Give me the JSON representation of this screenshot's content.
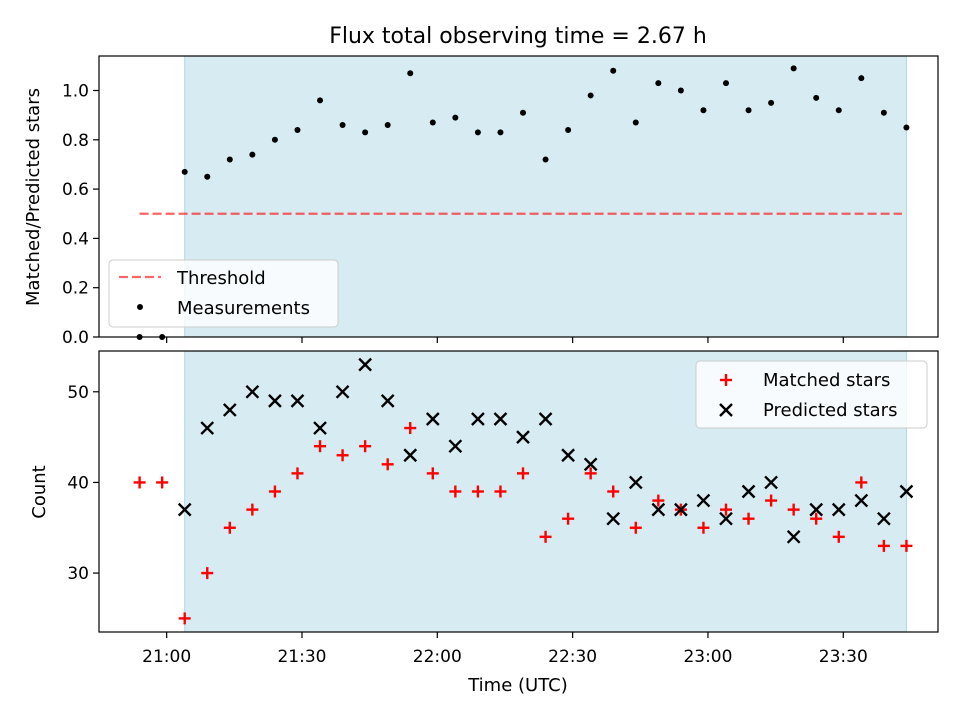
{
  "title": "Flux total observing time = 2.67 h",
  "colors": {
    "shade": "#add8e6",
    "threshold": "#ff0000",
    "measurements": "#000000",
    "matched": "#ff0000",
    "predicted": "#000000"
  },
  "chart_data": [
    {
      "type": "scatter",
      "panel": "top",
      "ylabel": "Matched/Predicted stars",
      "ylim": [
        0,
        1.14
      ],
      "yticks": [
        0.0,
        0.2,
        0.4,
        0.6,
        0.8,
        1.0
      ],
      "ytick_labels": [
        "0.0",
        "0.2",
        "0.4",
        "0.6",
        "0.8",
        "1.0"
      ],
      "xlim": [
        "20:45",
        "23:51"
      ],
      "xticks": [
        "21:00",
        "21:30",
        "22:00",
        "22:30",
        "23:00",
        "23:30"
      ],
      "shaded_span": [
        "21:04",
        "23:44"
      ],
      "threshold": {
        "name": "Threshold",
        "value": 0.5,
        "x_range": [
          "20:54",
          "23:43"
        ]
      },
      "measurements": {
        "name": "Measurements",
        "x": [
          "20:54",
          "20:59",
          "21:04",
          "21:09",
          "21:14",
          "21:19",
          "21:24",
          "21:29",
          "21:34",
          "21:39",
          "21:44",
          "21:49",
          "21:54",
          "21:59",
          "22:04",
          "22:09",
          "22:14",
          "22:19",
          "22:24",
          "22:29",
          "22:34",
          "22:39",
          "22:44",
          "22:49",
          "22:54",
          "22:59",
          "23:04",
          "23:09",
          "23:14",
          "23:19",
          "23:24",
          "23:29",
          "23:34",
          "23:39",
          "23:44"
        ],
        "y": [
          0.0,
          0.0,
          0.67,
          0.65,
          0.72,
          0.74,
          0.8,
          0.84,
          0.96,
          0.86,
          0.83,
          0.86,
          1.07,
          0.87,
          0.89,
          0.83,
          0.83,
          0.91,
          0.72,
          0.84,
          0.98,
          1.08,
          0.87,
          1.03,
          1.0,
          0.92,
          1.03,
          0.92,
          0.95,
          1.09,
          0.97,
          0.92,
          1.05,
          0.91,
          0.85
        ]
      },
      "legend": {
        "position": "lower left",
        "entries": [
          "Threshold",
          "Measurements"
        ]
      }
    },
    {
      "type": "scatter",
      "panel": "bottom",
      "xlabel": "Time (UTC)",
      "ylabel": "Count",
      "ylim": [
        23.5,
        54.5
      ],
      "yticks": [
        30,
        40,
        50
      ],
      "ytick_labels": [
        "30",
        "40",
        "50"
      ],
      "xlim": [
        "20:45",
        "23:51"
      ],
      "xticks": [
        "21:00",
        "21:30",
        "22:00",
        "22:30",
        "23:00",
        "23:30"
      ],
      "xtick_labels": [
        "21:00",
        "21:30",
        "22:00",
        "22:30",
        "23:00",
        "23:30"
      ],
      "shaded_span": [
        "21:04",
        "23:44"
      ],
      "series": [
        {
          "name": "Matched stars",
          "marker": "+",
          "x": [
            "20:54",
            "20:59",
            "21:04",
            "21:09",
            "21:14",
            "21:19",
            "21:24",
            "21:29",
            "21:34",
            "21:39",
            "21:44",
            "21:49",
            "21:54",
            "21:59",
            "22:04",
            "22:09",
            "22:14",
            "22:19",
            "22:24",
            "22:29",
            "22:34",
            "22:39",
            "22:44",
            "22:49",
            "22:54",
            "22:59",
            "23:04",
            "23:09",
            "23:14",
            "23:19",
            "23:24",
            "23:29",
            "23:34",
            "23:39",
            "23:44"
          ],
          "y": [
            40,
            40,
            25,
            30,
            35,
            37,
            39,
            41,
            44,
            43,
            44,
            42,
            46,
            41,
            39,
            39,
            39,
            41,
            34,
            36,
            41,
            39,
            35,
            38,
            37,
            35,
            37,
            36,
            38,
            37,
            36,
            34,
            40,
            33,
            33
          ]
        },
        {
          "name": "Predicted stars",
          "marker": "x",
          "x": [
            "21:04",
            "21:09",
            "21:14",
            "21:19",
            "21:24",
            "21:29",
            "21:34",
            "21:39",
            "21:44",
            "21:49",
            "21:54",
            "21:59",
            "22:04",
            "22:09",
            "22:14",
            "22:19",
            "22:24",
            "22:29",
            "22:34",
            "22:39",
            "22:44",
            "22:49",
            "22:54",
            "22:59",
            "23:04",
            "23:09",
            "23:14",
            "23:19",
            "23:24",
            "23:29",
            "23:34",
            "23:39",
            "23:44"
          ],
          "y": [
            37,
            46,
            48,
            50,
            49,
            49,
            46,
            50,
            53,
            49,
            43,
            47,
            44,
            47,
            47,
            45,
            47,
            43,
            42,
            36,
            40,
            37,
            37,
            38,
            36,
            39,
            40,
            34,
            37,
            37,
            38,
            36,
            39
          ]
        }
      ],
      "legend": {
        "position": "upper right",
        "entries": [
          "Matched stars",
          "Predicted stars"
        ]
      }
    }
  ]
}
